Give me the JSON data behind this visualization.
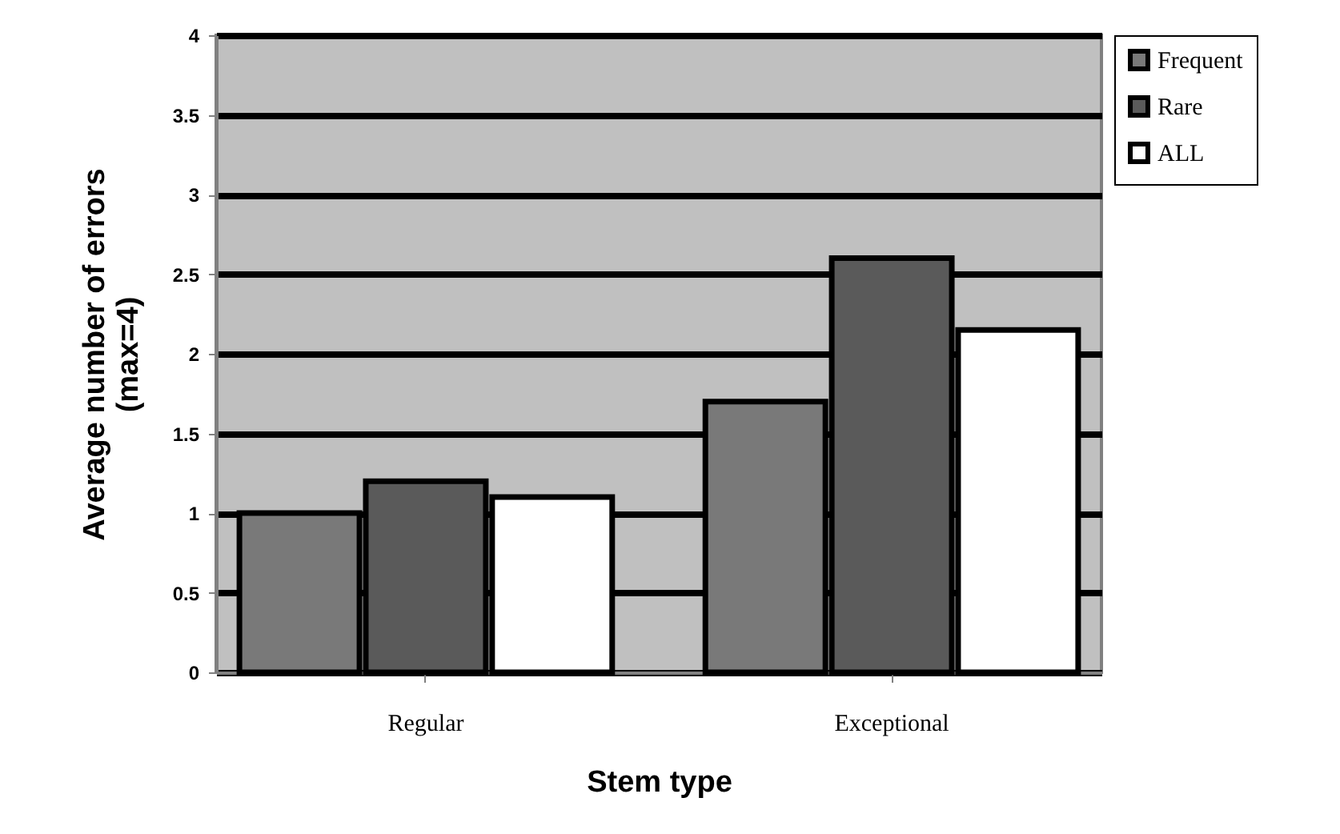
{
  "chart_data": {
    "type": "bar",
    "xlabel": "Stem type",
    "ylabel": "Average number of errors\n(max=4)",
    "categories": [
      "Regular",
      "Exceptional"
    ],
    "series": [
      {
        "name": "Frequent",
        "color": "#797979",
        "values": [
          1.0,
          1.7
        ]
      },
      {
        "name": "Rare",
        "color": "#5a5a5a",
        "values": [
          1.2,
          2.6
        ]
      },
      {
        "name": "ALL",
        "color": "#ffffff",
        "values": [
          1.1,
          2.15
        ]
      }
    ],
    "ylim": [
      0,
      4
    ],
    "yticks": [
      0,
      0.5,
      1,
      1.5,
      2,
      2.5,
      3,
      3.5,
      4
    ],
    "grid": "y",
    "legend": "right"
  }
}
